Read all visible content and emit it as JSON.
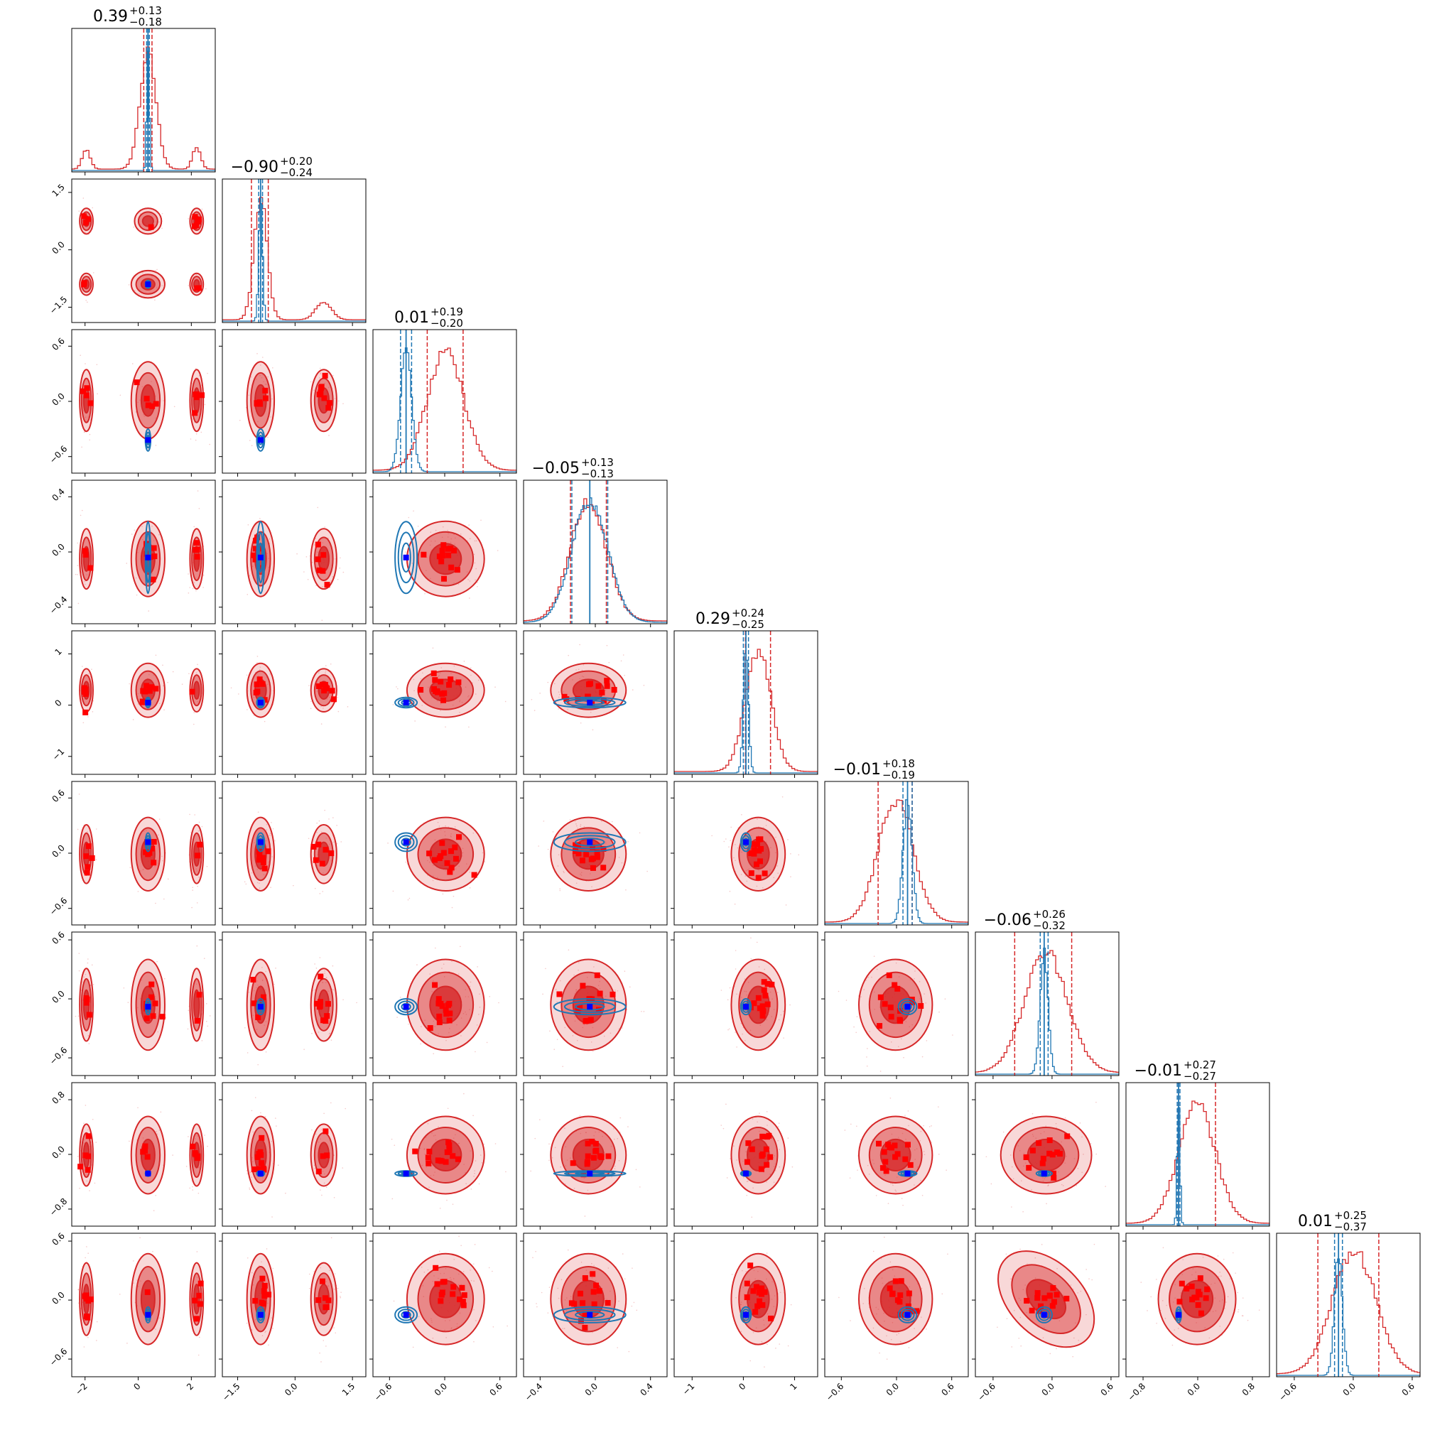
{
  "chart_data": {
    "type": "corner",
    "n_params": 9,
    "titles": [
      {
        "median": "0.39",
        "plus": "+0.13",
        "minus": "−0.18"
      },
      {
        "median": "−0.90",
        "plus": "+0.20",
        "minus": "−0.24"
      },
      {
        "median": "0.01",
        "plus": "+0.19",
        "minus": "−0.20"
      },
      {
        "median": "−0.05",
        "plus": "+0.13",
        "minus": "−0.13"
      },
      {
        "median": "0.29",
        "plus": "+0.24",
        "minus": "−0.25"
      },
      {
        "median": "−0.01",
        "plus": "+0.18",
        "minus": "−0.19"
      },
      {
        "median": "−0.06",
        "plus": "+0.26",
        "minus": "−0.32"
      },
      {
        "median": "−0.01",
        "plus": "+0.27",
        "minus": "−0.27"
      },
      {
        "median": "0.01",
        "plus": "+0.25",
        "minus": "−0.37"
      }
    ],
    "axes": [
      {
        "range": [
          -2.5,
          2.9
        ],
        "ticks": [
          -2,
          0,
          2
        ],
        "tick_labels": [
          "−2",
          "0",
          "2"
        ]
      },
      {
        "range": [
          -1.9,
          1.85
        ],
        "ticks": [
          -1.5,
          0.0,
          1.5
        ],
        "tick_labels": [
          "−1.5",
          "0.0",
          "1.5"
        ]
      },
      {
        "range": [
          -0.78,
          0.78
        ],
        "ticks": [
          -0.6,
          0.0,
          0.6
        ],
        "tick_labels": [
          "−0.6",
          "0.0",
          "0.6"
        ]
      },
      {
        "range": [
          -0.52,
          0.52
        ],
        "ticks": [
          -0.4,
          0.0,
          0.4
        ],
        "tick_labels": [
          "−0.4",
          "0.0",
          "0.4"
        ]
      },
      {
        "range": [
          -1.35,
          1.45
        ],
        "ticks": [
          -1,
          0,
          1
        ],
        "tick_labels": [
          "−1",
          "0",
          "1"
        ]
      },
      {
        "range": [
          -0.78,
          0.78
        ],
        "ticks": [
          -0.6,
          0.0,
          0.6
        ],
        "tick_labels": [
          "−0.6",
          "0.0",
          "0.6"
        ]
      },
      {
        "range": [
          -0.78,
          0.68
        ],
        "ticks": [
          -0.6,
          0.0,
          0.6
        ],
        "tick_labels": [
          "−0.6",
          "0.0",
          "0.6"
        ]
      },
      {
        "range": [
          -1.05,
          1.05
        ],
        "ticks": [
          -0.8,
          0.0,
          0.8
        ],
        "tick_labels": [
          "−0.8",
          "0.0",
          "0.8"
        ]
      },
      {
        "range": [
          -0.78,
          0.68
        ],
        "ticks": [
          -0.6,
          0.0,
          0.6
        ],
        "tick_labels": [
          "−0.6",
          "0.0",
          "0.6"
        ]
      }
    ],
    "reference": {
      "name": "",
      "color": "#1f77b4",
      "medians": [
        0.37,
        -0.9,
        -0.42,
        -0.04,
        0.05,
        0.12,
        -0.08,
        -0.28,
        -0.15
      ],
      "widths": [
        0.05,
        0.05,
        0.06,
        0.13,
        0.05,
        0.05,
        0.04,
        0.02,
        0.04
      ]
    },
    "posterior": {
      "name": "",
      "color": "#d62728",
      "medians": [
        0.39,
        -0.9,
        0.01,
        -0.05,
        0.29,
        -0.01,
        -0.06,
        -0.01,
        0.01
      ],
      "plus": [
        0.13,
        0.2,
        0.19,
        0.13,
        0.24,
        0.18,
        0.26,
        0.27,
        0.25
      ],
      "minus": [
        0.18,
        0.24,
        0.2,
        0.13,
        0.25,
        0.19,
        0.32,
        0.27,
        0.37
      ],
      "sigmas": [
        0.3,
        0.17,
        0.2,
        0.13,
        0.25,
        0.19,
        0.22,
        0.27,
        0.22
      ],
      "modes": [
        [
          {
            "c": 0.37,
            "s": 0.3,
            "w": 0.85
          },
          {
            "c": -1.95,
            "s": 0.15,
            "w": 0.07
          },
          {
            "c": 2.2,
            "s": 0.15,
            "w": 0.08
          }
        ],
        [
          {
            "c": -0.9,
            "s": 0.17,
            "w": 0.85
          },
          {
            "c": 0.75,
            "s": 0.2,
            "w": 0.15
          }
        ],
        [
          {
            "c": 0.01,
            "s": 0.2,
            "w": 1.0
          }
        ],
        [
          {
            "c": -0.05,
            "s": 0.13,
            "w": 1.0
          }
        ],
        [
          {
            "c": 0.29,
            "s": 0.25,
            "w": 1.0
          }
        ],
        [
          {
            "c": -0.01,
            "s": 0.19,
            "w": 1.0
          }
        ],
        [
          {
            "c": -0.06,
            "s": 0.22,
            "w": 1.0
          }
        ],
        [
          {
            "c": -0.01,
            "s": 0.27,
            "w": 1.0
          }
        ],
        [
          {
            "c": 0.01,
            "s": 0.22,
            "w": 1.0
          }
        ]
      ],
      "correlations": [
        {
          "i": 8,
          "j": 6,
          "rho": -0.65
        }
      ]
    }
  }
}
